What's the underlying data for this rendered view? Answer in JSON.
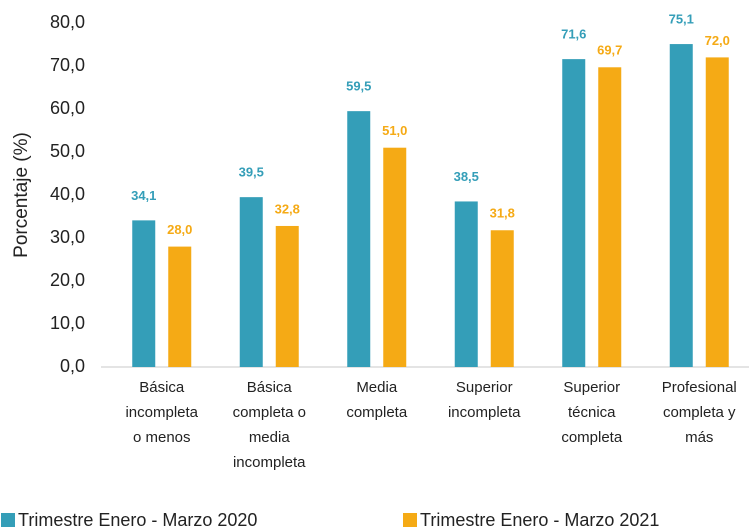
{
  "chart_data": {
    "type": "bar",
    "y_label": "Porcentaje (%)",
    "categories": [
      "Básica\nincompleta\no menos",
      "Básica\ncompleta o\nmedia\nincompleta",
      "Media\ncompleta",
      "Superior\nincompleta",
      "Superior\ntécnica\ncompleta",
      "Profesional\ncompleta y\nmás"
    ],
    "series": [
      {
        "name": "Trimestre Enero - Marzo 2020",
        "color": "#349eb8",
        "values": [
          34.1,
          39.5,
          59.5,
          38.5,
          71.6,
          75.1
        ],
        "value_labels": [
          "34,1",
          "39,5",
          "59,5",
          "38,5",
          "71,6",
          "75,1"
        ]
      },
      {
        "name": "Trimestre Enero - Marzo 2021",
        "color": "#f5aa15",
        "values": [
          28.0,
          32.8,
          51.0,
          31.8,
          69.7,
          72.0
        ],
        "value_labels": [
          "28,0",
          "32,8",
          "51,0",
          "31,8",
          "69,7",
          "72,0"
        ]
      }
    ],
    "ylim": [
      0,
      80
    ],
    "yticks": [
      {
        "value": 0,
        "label": "0,0"
      },
      {
        "value": 10,
        "label": "10,0"
      },
      {
        "value": 20,
        "label": "20,0"
      },
      {
        "value": 30,
        "label": "30,0"
      },
      {
        "value": 40,
        "label": "40,0"
      },
      {
        "value": 50,
        "label": "50,0"
      },
      {
        "value": 60,
        "label": "60,0"
      },
      {
        "value": 70,
        "label": "70,0"
      },
      {
        "value": 80,
        "label": "80,0"
      }
    ],
    "legend": "bottom"
  }
}
